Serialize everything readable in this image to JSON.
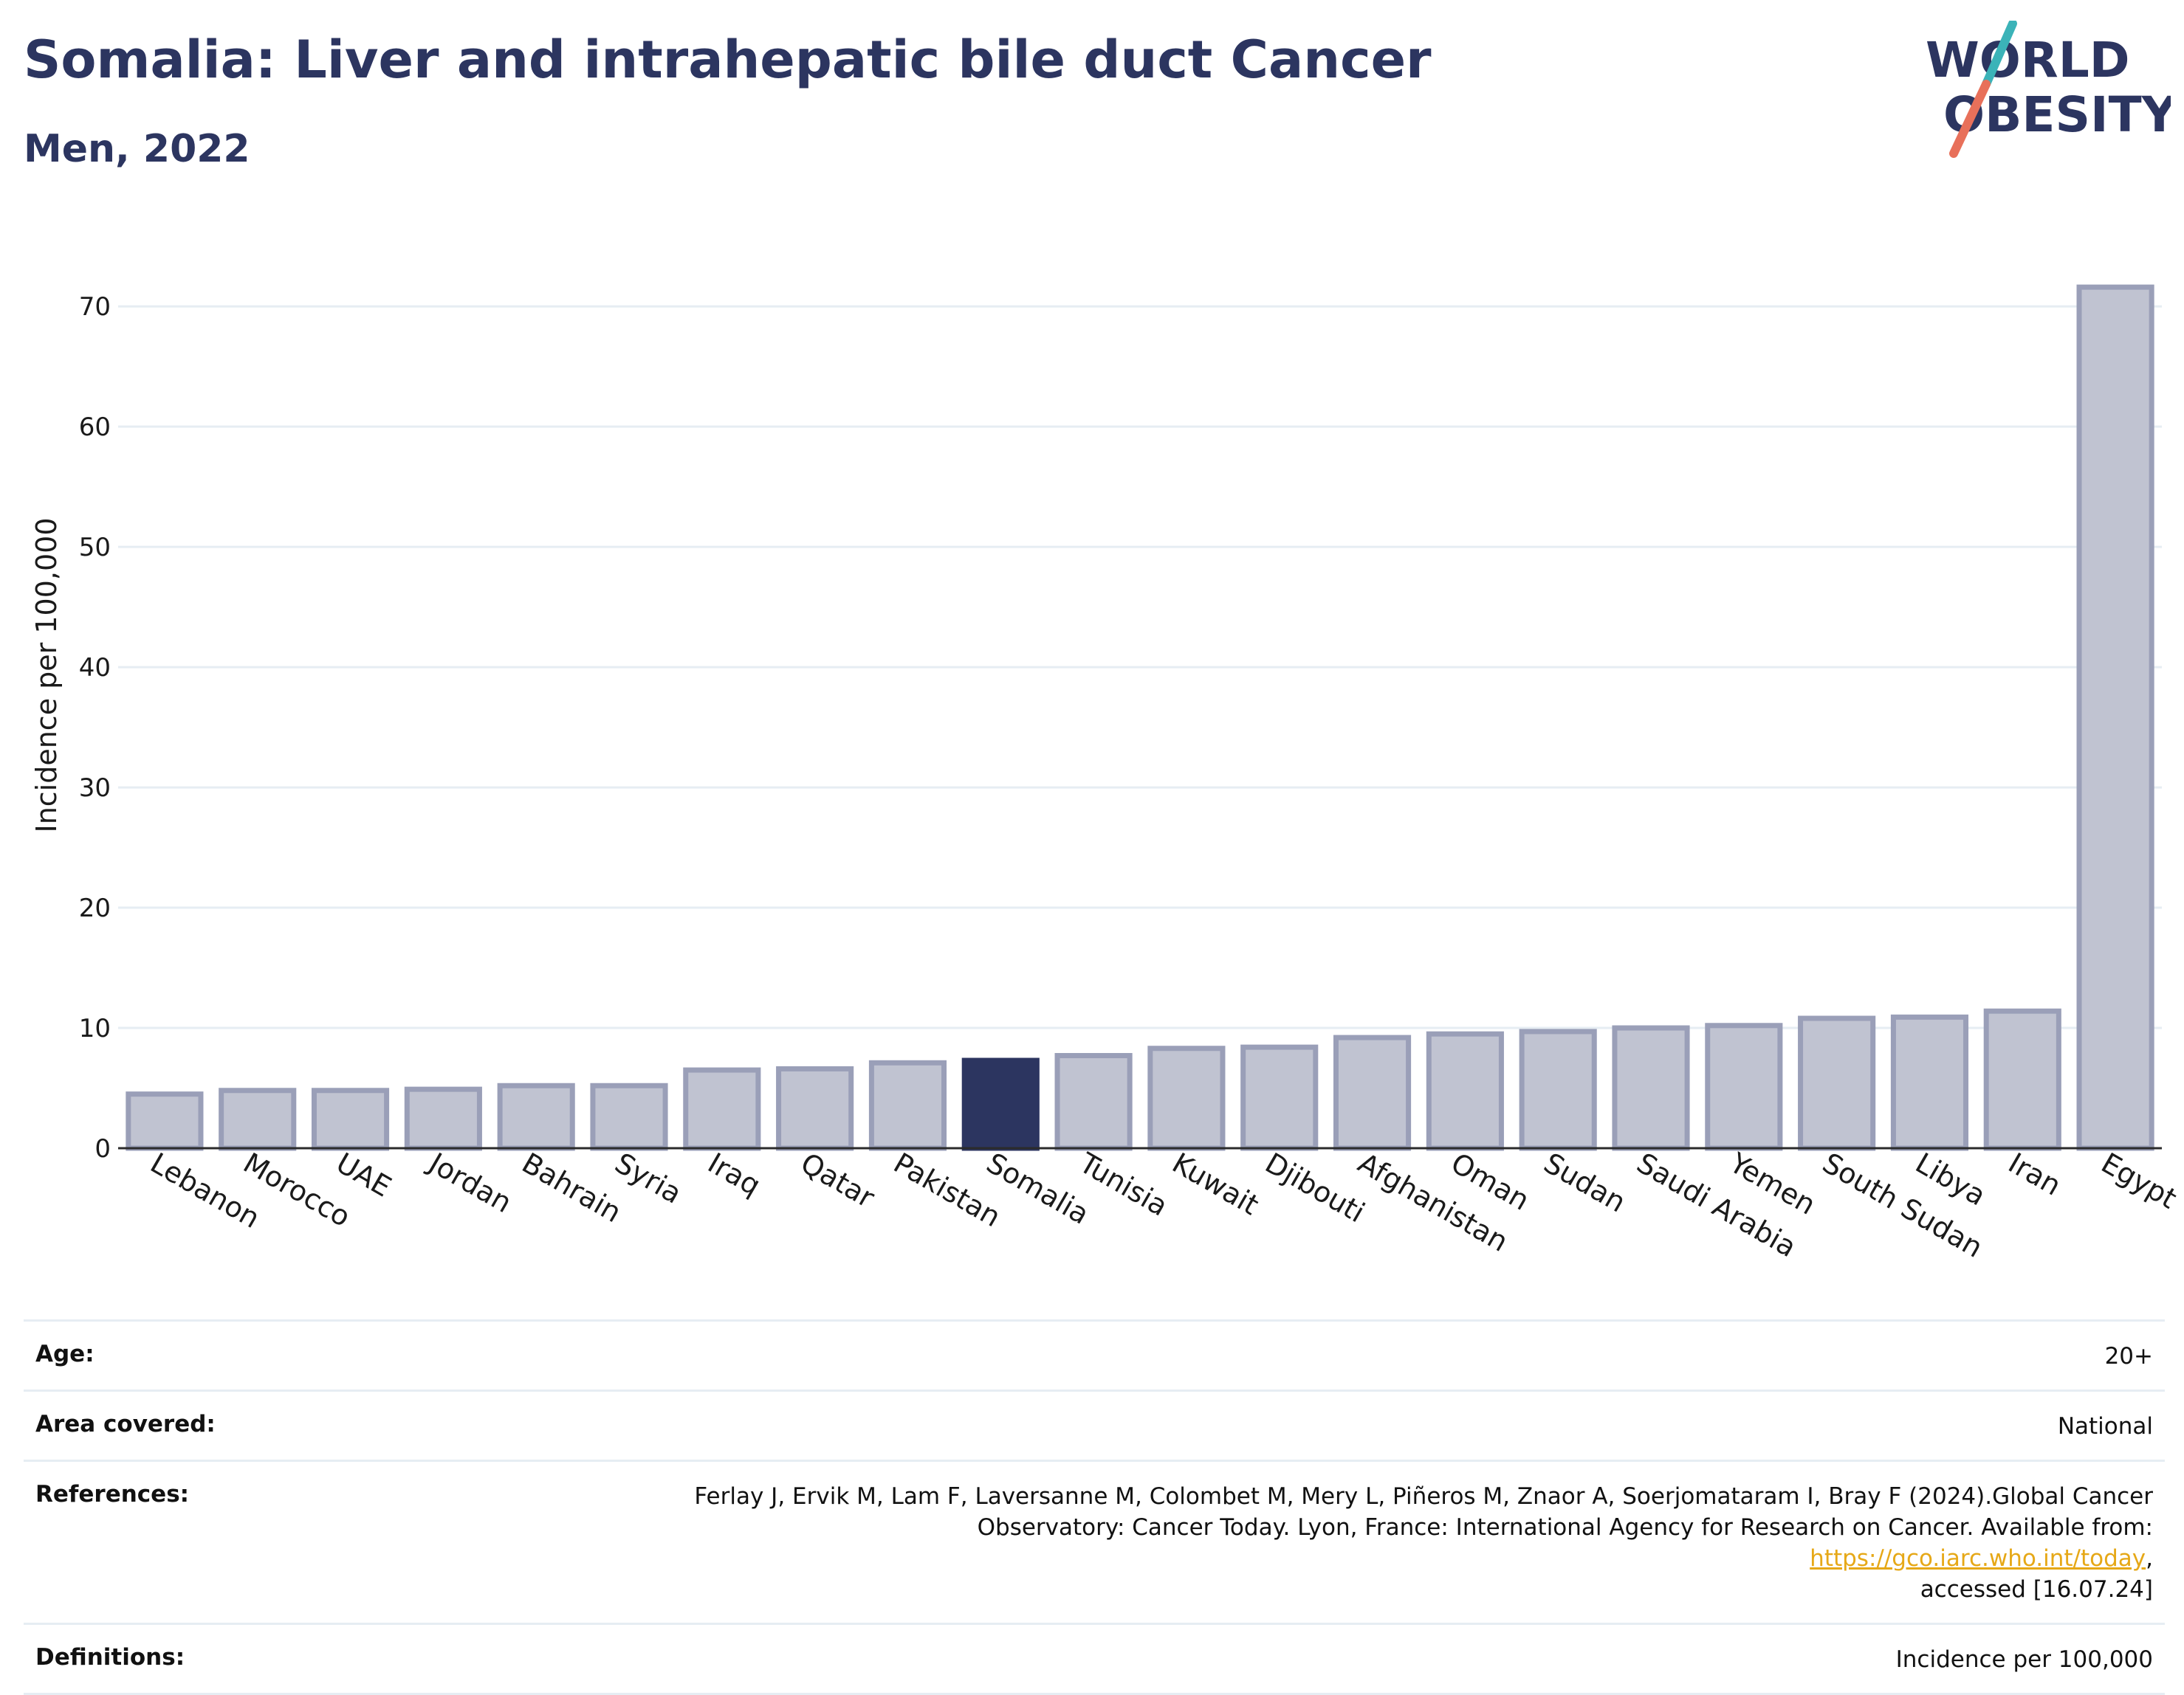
{
  "header": {
    "title": "Somalia: Liver and intrahepatic bile duct Cancer",
    "subtitle": "Men, 2022"
  },
  "logo": {
    "line1": "WORLD",
    "line2": "OBESITY",
    "text_color": "#2c3560",
    "slash_color_top": "#3bb3b8",
    "slash_color_bottom": "#e8705a"
  },
  "colors": {
    "bar_default": "#c0c3d1",
    "bar_default_edge": "#9a9fb8",
    "bar_highlight": "#2c3560",
    "grid": "#e6edf3"
  },
  "chart_data": {
    "type": "bar",
    "categories": [
      "Lebanon",
      "Morocco",
      "UAE",
      "Jordan",
      "Bahrain",
      "Syria",
      "Iraq",
      "Qatar",
      "Pakistan",
      "Somalia",
      "Tunisia",
      "Kuwait",
      "Djibouti",
      "Afghanistan",
      "Oman",
      "Sudan",
      "Saudi Arabia",
      "Yemen",
      "South Sudan",
      "Libya",
      "Iran",
      "Egypt"
    ],
    "values": [
      4.5,
      4.8,
      4.8,
      4.9,
      5.2,
      5.2,
      6.5,
      6.6,
      7.1,
      7.3,
      7.7,
      8.3,
      8.4,
      9.2,
      9.5,
      9.7,
      10.0,
      10.2,
      10.8,
      10.9,
      11.4,
      71.6
    ],
    "highlight": "Somalia",
    "ylabel": "Incidence per 100,000",
    "xlabel": "",
    "ylim": [
      0,
      74
    ],
    "yticks": [
      0,
      10,
      20,
      30,
      40,
      50,
      60,
      70
    ],
    "grid": true
  },
  "meta": {
    "age_key": "Age:",
    "age_val": "20+",
    "area_key": "Area covered:",
    "area_val": "National",
    "ref_key": "References:",
    "ref_line1": "Ferlay J, Ervik M, Lam F, Laversanne M, Colombet M, Mery L, Piñeros M, Znaor A, Soerjomataram I, Bray F (2024).Global Cancer",
    "ref_line2_prefix": "Observatory: Cancer Today. Lyon, France: International Agency for Research on Cancer. Available from: ",
    "ref_link": "https://gco.iarc.who.int/today",
    "ref_line2_suffix": ",",
    "ref_line3": "accessed [16.07.24]",
    "def_key": "Definitions:",
    "def_val": "Incidence per 100,000"
  }
}
